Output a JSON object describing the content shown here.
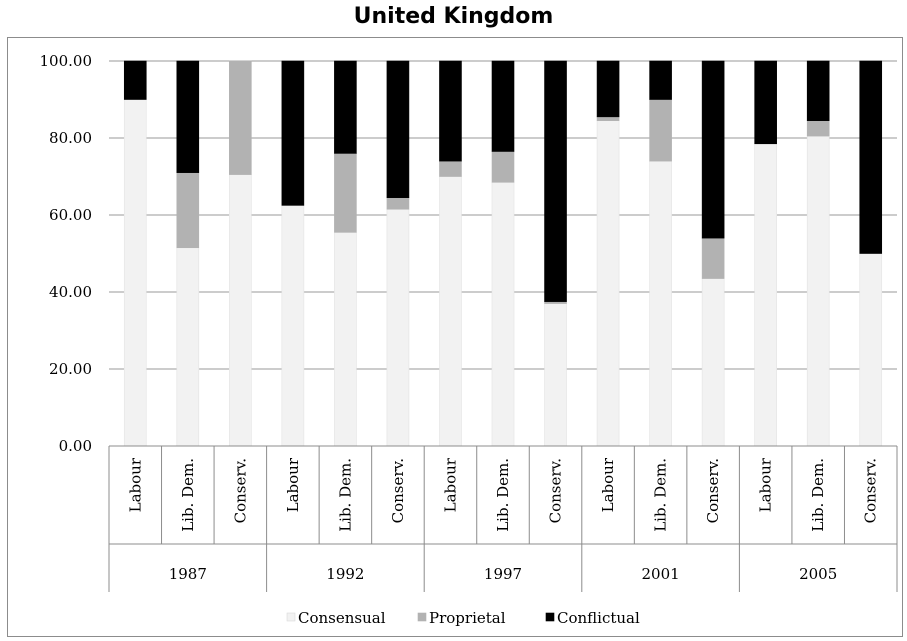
{
  "chart_data": {
    "type": "bar",
    "stacked": true,
    "title": "United Kingdom",
    "xlabel": "",
    "ylabel": "",
    "ylim": [
      0,
      100
    ],
    "yticks": [
      "0.00",
      "20.00",
      "40.00",
      "60.00",
      "80.00",
      "100.00"
    ],
    "ytick_values": [
      0,
      20,
      40,
      60,
      80,
      100
    ],
    "grid": true,
    "legend_position": "bottom",
    "groups": [
      {
        "label": "1987",
        "categories": [
          "Labour",
          "Lib. Dem.",
          "Conserv."
        ]
      },
      {
        "label": "1992",
        "categories": [
          "Labour",
          "Lib. Dem.",
          "Conserv."
        ]
      },
      {
        "label": "1997",
        "categories": [
          "Labour",
          "Lib. Dem.",
          "Conserv."
        ]
      },
      {
        "label": "2001",
        "categories": [
          "Labour",
          "Lib. Dem.",
          "Conserv."
        ]
      },
      {
        "label": "2005",
        "categories": [
          "Labour",
          "Lib. Dem.",
          "Conserv."
        ]
      }
    ],
    "series": [
      {
        "name": "Consensual",
        "color": "#f2f2f2",
        "values": [
          90.0,
          51.5,
          70.5,
          62.5,
          55.5,
          61.5,
          70.0,
          68.5,
          37.0,
          84.5,
          74.0,
          43.5,
          78.5,
          80.5,
          50.0
        ]
      },
      {
        "name": "Proprietal",
        "color": "#b2b2b2",
        "values": [
          0.0,
          19.5,
          29.5,
          0.0,
          20.5,
          3.0,
          4.0,
          8.0,
          0.5,
          1.0,
          16.0,
          10.5,
          0.0,
          4.0,
          0.0
        ]
      },
      {
        "name": "Conflictual",
        "color": "#000000",
        "values": [
          10.0,
          29.0,
          0.0,
          37.5,
          24.0,
          35.5,
          26.0,
          23.5,
          62.5,
          14.5,
          10.0,
          46.0,
          21.5,
          15.5,
          50.0
        ]
      }
    ]
  }
}
